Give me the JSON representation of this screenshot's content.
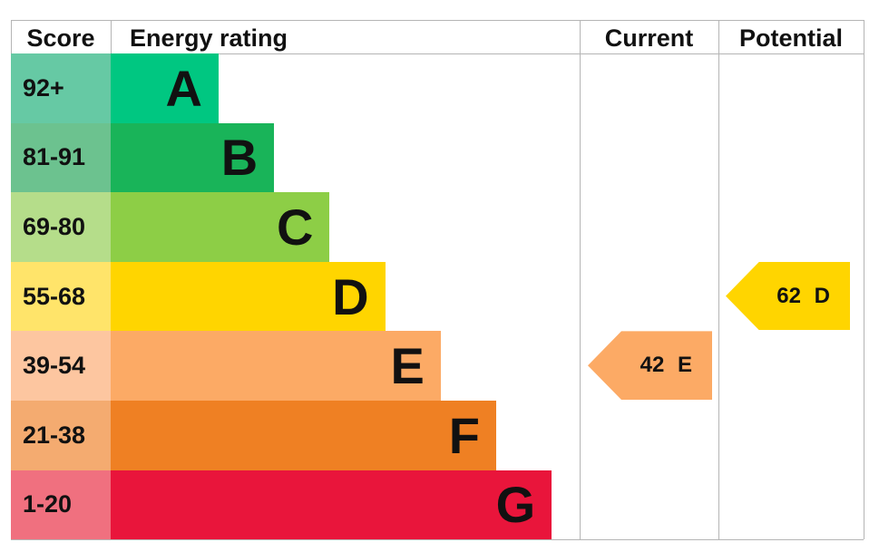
{
  "headers": {
    "score": "Score",
    "rating": "Energy rating",
    "current": "Current",
    "potential": "Potential"
  },
  "chart_data": {
    "type": "bar",
    "categories": [
      "A",
      "B",
      "C",
      "D",
      "E",
      "F",
      "G"
    ],
    "score_ranges": [
      "92+",
      "81-91",
      "69-80",
      "55-68",
      "39-54",
      "21-38",
      "1-20"
    ],
    "colors": [
      "#00c781",
      "#19b459",
      "#8dce46",
      "#ffd500",
      "#fcaa65",
      "#ef8023",
      "#e9153b"
    ],
    "score_colors": [
      "#66c9a4",
      "#6cc28f",
      "#b5dd8a",
      "#ffe46a",
      "#fdc6a0",
      "#f4ab70",
      "#f0707f"
    ],
    "current": {
      "value": 42,
      "band": "E",
      "label": "42 E",
      "color": "#fcaa65"
    },
    "potential": {
      "value": 62,
      "band": "D",
      "label": "62 D",
      "color": "#ffd500"
    }
  }
}
